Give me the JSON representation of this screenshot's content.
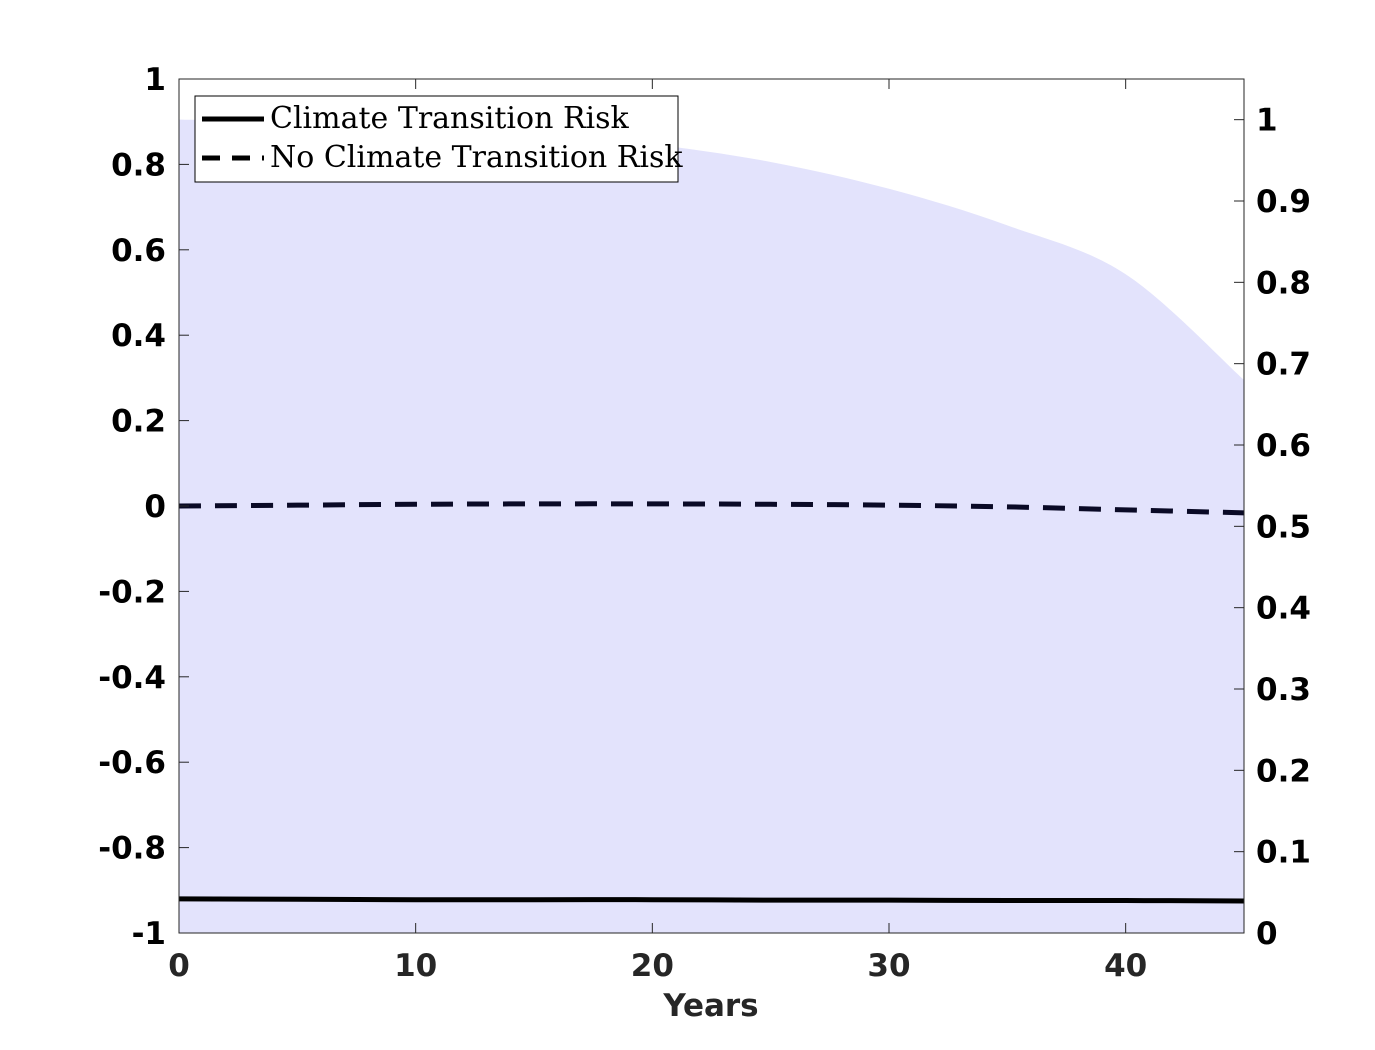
{
  "colors": {
    "band_fill": "#e3e3fc",
    "line": "#000000",
    "dashed_line": "#0a0a26",
    "axis": "#262626",
    "legend_border": "#000000",
    "background": "#ffffff"
  },
  "chart_data": {
    "type": "area",
    "title": "",
    "xlabel": "Years",
    "ylabel_left": "",
    "ylabel_right": "",
    "xlim": [
      0,
      45
    ],
    "ylim_left": [
      -1,
      1
    ],
    "ylim_right": [
      0,
      1.05
    ],
    "x_ticks": [
      "0",
      "10",
      "20",
      "30",
      "40"
    ],
    "x_tick_values": [
      0,
      10,
      20,
      30,
      40
    ],
    "y_left_ticks": [
      "1",
      "0.8",
      "0.6",
      "0.4",
      "0.2",
      "0",
      "-0.2",
      "-0.4",
      "-0.6",
      "-0.8",
      "-1"
    ],
    "y_left_tick_values": [
      1,
      0.8,
      0.6,
      0.4,
      0.2,
      0,
      -0.2,
      -0.4,
      -0.6,
      -0.8,
      -1
    ],
    "y_right_ticks": [
      "1",
      "0.9",
      "0.8",
      "0.7",
      "0.6",
      "0.5",
      "0.4",
      "0.3",
      "0.2",
      "0.1",
      "0"
    ],
    "y_right_tick_values": [
      1,
      0.9,
      0.8,
      0.7,
      0.6,
      0.5,
      0.4,
      0.3,
      0.2,
      0.1,
      0
    ],
    "legend_position": "top-left",
    "grid": false,
    "shaded_area": {
      "axis": "right",
      "x": [
        0,
        5,
        10,
        15,
        20,
        25,
        30,
        35,
        40,
        45
      ],
      "upper": [
        1.0,
        0.998,
        0.994,
        0.985,
        0.97,
        0.948,
        0.915,
        0.87,
        0.81,
        0.68
      ],
      "lower": [
        0,
        0,
        0,
        0,
        0,
        0,
        0,
        0,
        0,
        0
      ]
    },
    "series": [
      {
        "name": "Climate Transition Risk",
        "style": "solid",
        "axis": "left",
        "x": [
          0,
          5,
          10,
          15,
          20,
          25,
          30,
          35,
          40,
          45
        ],
        "values": [
          -0.92,
          -0.921,
          -0.922,
          -0.922,
          -0.922,
          -0.923,
          -0.923,
          -0.924,
          -0.924,
          -0.925
        ]
      },
      {
        "name": "No Climate Transition Risk",
        "style": "dashed",
        "axis": "left",
        "x": [
          0,
          5,
          10,
          15,
          20,
          25,
          30,
          35,
          40,
          45
        ],
        "values": [
          0.0,
          0.002,
          0.004,
          0.005,
          0.005,
          0.004,
          0.002,
          -0.002,
          -0.009,
          -0.016
        ]
      }
    ]
  }
}
